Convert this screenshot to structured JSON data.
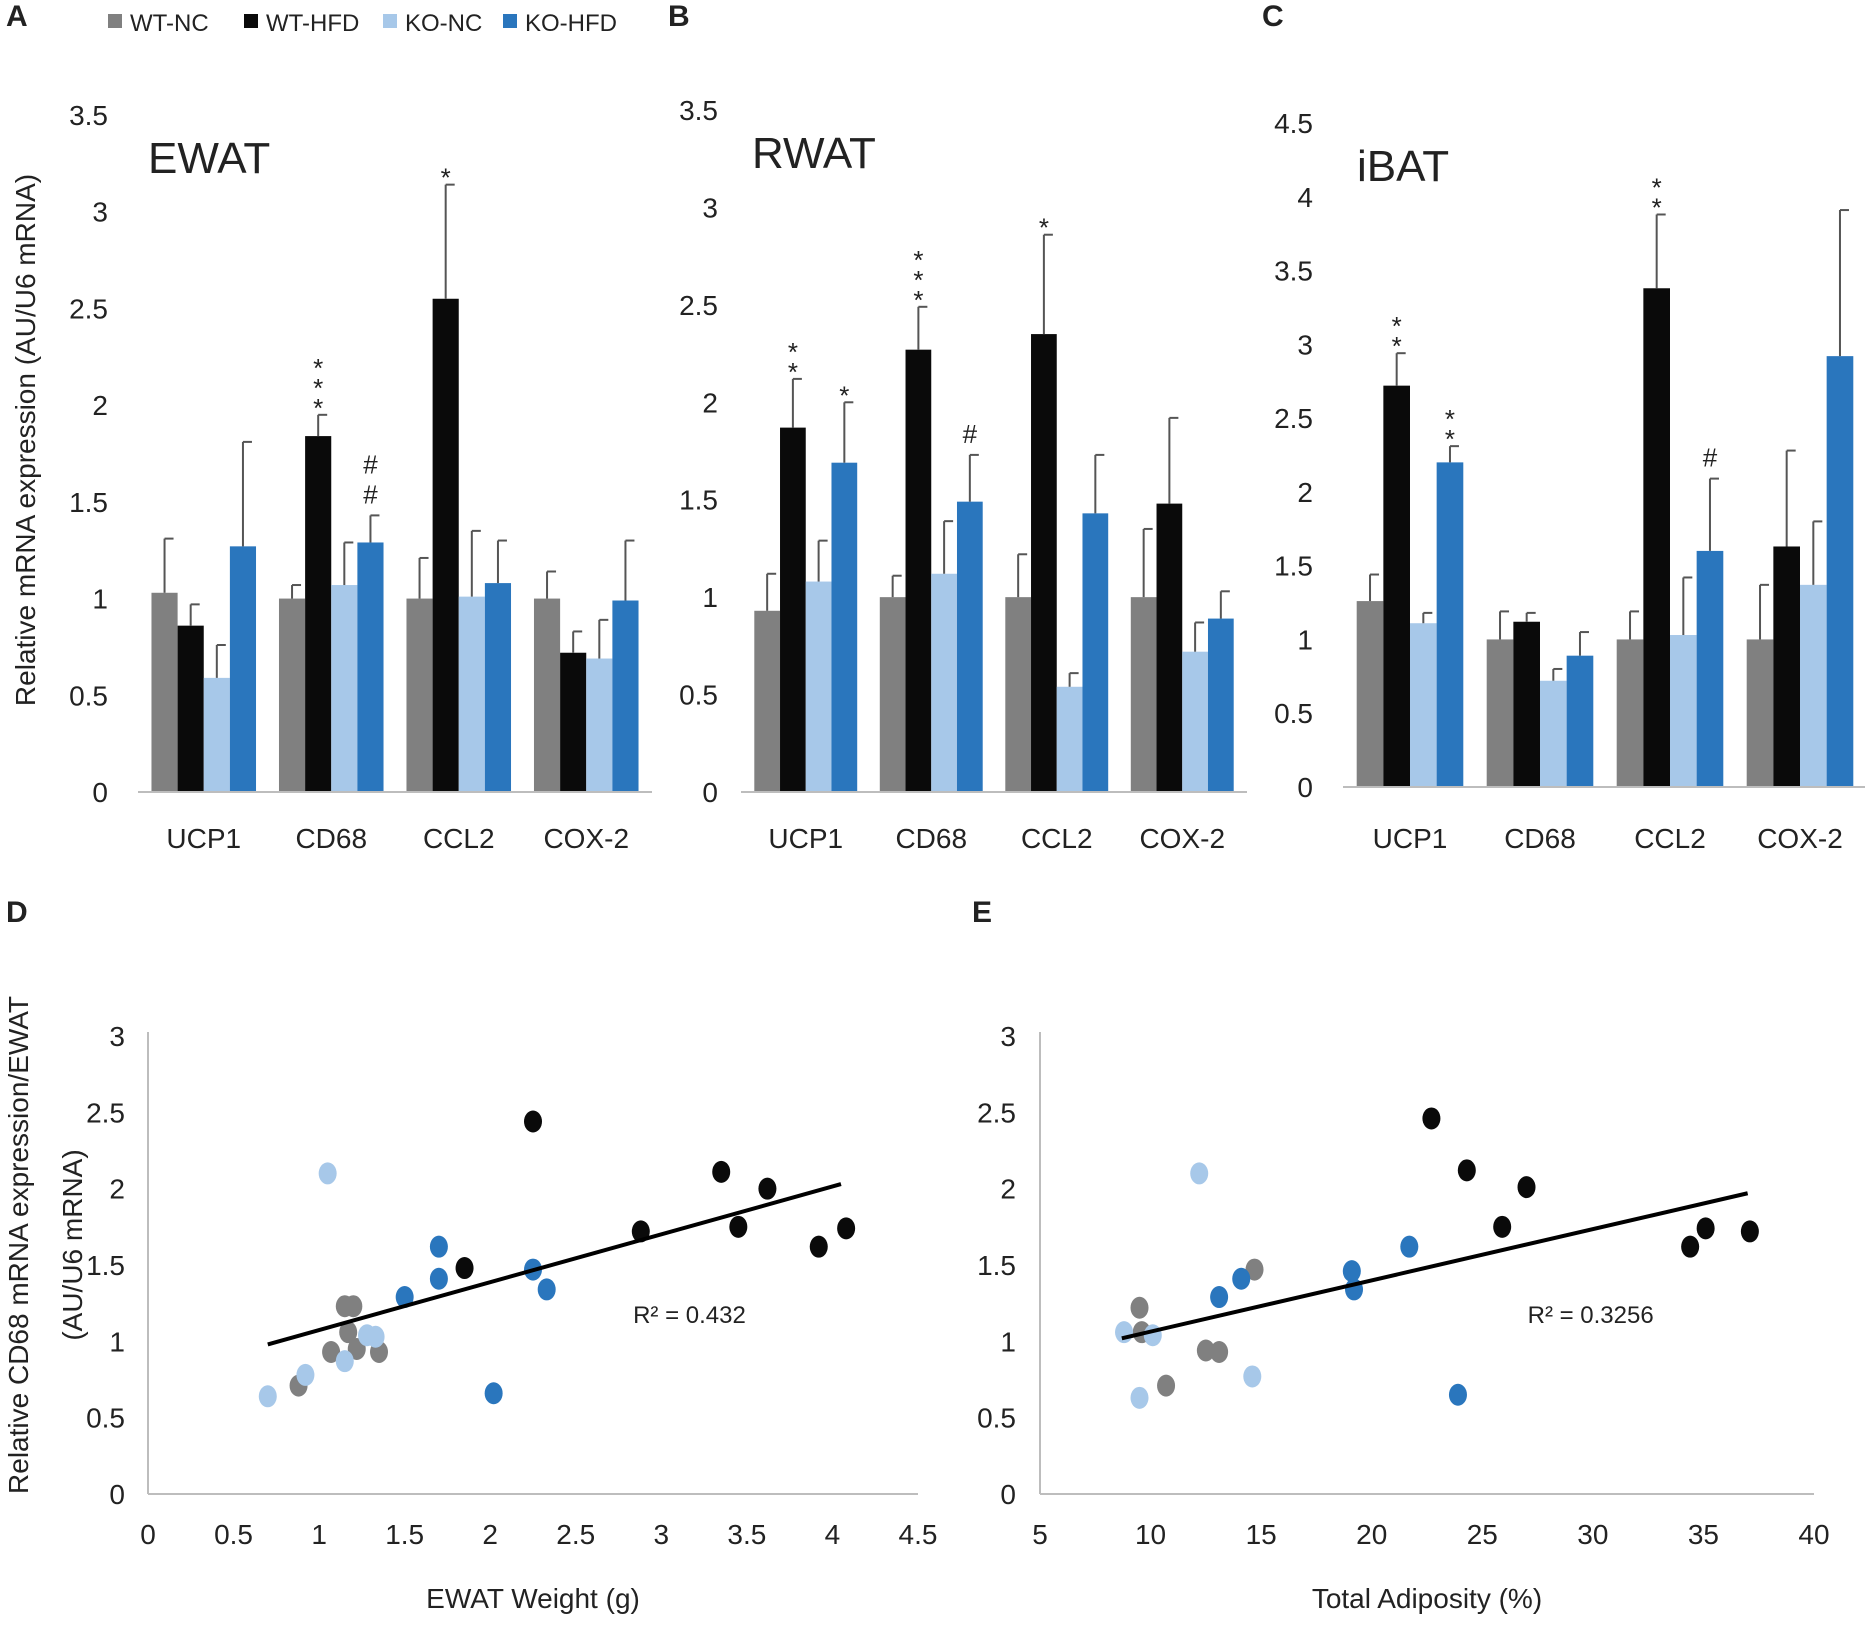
{
  "colors": {
    "WT-NC": "#808080",
    "WT-HFD": "#0a0a0a",
    "KO-NC": "#a7c8e9",
    "KO-HFD": "#2a76bd"
  },
  "legend": [
    "WT-NC",
    "WT-HFD",
    "KO-NC",
    "KO-HFD"
  ],
  "panel_labels": [
    "A",
    "B",
    "C",
    "D",
    "E"
  ],
  "bar_ylabel": "Relative mRNA expression (AU/U6 mRNA)",
  "scatter_ylabel": [
    "Relative CD68 mRNA expression/EWAT",
    "(AU/U6 mRNA)"
  ],
  "chart_data": [
    {
      "type": "bar",
      "title": "EWAT",
      "panel": "A",
      "categories": [
        "UCP1",
        "CD68",
        "CCL2",
        "COX-2"
      ],
      "ylim": [
        0,
        3.5
      ],
      "yticks": [
        "0",
        "0.5",
        "1",
        "1.5",
        "2",
        "2.5",
        "3",
        "3.5"
      ],
      "series": [
        {
          "name": "WT-NC",
          "values": [
            1.03,
            1.0,
            1.0,
            1.0
          ],
          "errors": [
            0.28,
            0.07,
            0.21,
            0.14
          ]
        },
        {
          "name": "WT-HFD",
          "values": [
            0.86,
            1.84,
            2.55,
            0.72
          ],
          "errors": [
            0.11,
            0.11,
            0.59,
            0.11
          ]
        },
        {
          "name": "KO-NC",
          "values": [
            0.59,
            1.07,
            1.01,
            0.69
          ],
          "errors": [
            0.17,
            0.22,
            0.34,
            0.2
          ]
        },
        {
          "name": "KO-HFD",
          "values": [
            1.27,
            1.29,
            1.08,
            0.99
          ],
          "errors": [
            0.54,
            0.14,
            0.22,
            0.31
          ]
        }
      ],
      "annotations": [
        {
          "cat": 1,
          "series": 1,
          "text": "***"
        },
        {
          "cat": 1,
          "series": 3,
          "text": "##"
        },
        {
          "cat": 2,
          "series": 1,
          "text": "*"
        }
      ]
    },
    {
      "type": "bar",
      "title": "RWAT",
      "panel": "B",
      "categories": [
        "UCP1",
        "CD68",
        "CCL2",
        "COX-2"
      ],
      "ylim": [
        0,
        3.5
      ],
      "yticks": [
        "0",
        "0.5",
        "1",
        "1.5",
        "2",
        "2.5",
        "3",
        "3.5"
      ],
      "series": [
        {
          "name": "WT-NC",
          "values": [
            0.93,
            1.0,
            1.0,
            1.0
          ],
          "errors": [
            0.19,
            0.11,
            0.22,
            0.35
          ]
        },
        {
          "name": "WT-HFD",
          "values": [
            1.87,
            2.27,
            2.35,
            1.48
          ],
          "errors": [
            0.25,
            0.22,
            0.51,
            0.44
          ]
        },
        {
          "name": "KO-NC",
          "values": [
            1.08,
            1.12,
            0.54,
            0.72
          ],
          "errors": [
            0.21,
            0.27,
            0.07,
            0.15
          ]
        },
        {
          "name": "KO-HFD",
          "values": [
            1.69,
            1.49,
            1.43,
            0.89
          ],
          "errors": [
            0.31,
            0.24,
            0.3,
            0.14
          ]
        }
      ],
      "annotations": [
        {
          "cat": 0,
          "series": 1,
          "text": "**"
        },
        {
          "cat": 0,
          "series": 3,
          "text": "*"
        },
        {
          "cat": 1,
          "series": 1,
          "text": "***"
        },
        {
          "cat": 1,
          "series": 3,
          "text": "#"
        },
        {
          "cat": 2,
          "series": 1,
          "text": "*"
        }
      ]
    },
    {
      "type": "bar",
      "title": "iBAT",
      "panel": "C",
      "categories": [
        "UCP1",
        "CD68",
        "CCL2",
        "COX-2"
      ],
      "ylim": [
        0,
        4.5
      ],
      "yticks": [
        "0",
        "0.5",
        "1",
        "1.5",
        "2",
        "2.5",
        "3",
        "3.5",
        "4",
        "4.5"
      ],
      "series": [
        {
          "name": "WT-NC",
          "values": [
            1.26,
            1.0,
            1.0,
            1.0
          ],
          "errors": [
            0.18,
            0.19,
            0.19,
            0.37
          ]
        },
        {
          "name": "WT-HFD",
          "values": [
            2.72,
            1.12,
            3.38,
            1.63
          ],
          "errors": [
            0.22,
            0.06,
            0.5,
            0.65
          ]
        },
        {
          "name": "KO-NC",
          "values": [
            1.11,
            0.72,
            1.03,
            1.37
          ],
          "errors": [
            0.07,
            0.08,
            0.39,
            0.43
          ]
        },
        {
          "name": "KO-HFD",
          "values": [
            2.2,
            0.89,
            1.6,
            2.92
          ],
          "errors": [
            0.11,
            0.16,
            0.49,
            0.99
          ]
        }
      ],
      "annotations": [
        {
          "cat": 0,
          "series": 1,
          "text": "**"
        },
        {
          "cat": 0,
          "series": 3,
          "text": "**"
        },
        {
          "cat": 2,
          "series": 1,
          "text": "**"
        },
        {
          "cat": 2,
          "series": 3,
          "text": "#"
        }
      ]
    },
    {
      "type": "scatter",
      "panel": "D",
      "xlabel": "EWAT Weight (g)",
      "xlim": [
        0,
        4.5
      ],
      "ylim": [
        0,
        3
      ],
      "xticks": [
        "0",
        "0.5",
        "1",
        "1.5",
        "2",
        "2.5",
        "3",
        "3.5",
        "4",
        "4.5"
      ],
      "yticks": [
        "0",
        "0.5",
        "1",
        "1.5",
        "2",
        "2.5",
        "3"
      ],
      "r2": "R² = 0.432",
      "trendline": {
        "x": [
          0.7,
          4.05
        ],
        "y": [
          0.98,
          2.03
        ]
      },
      "series": [
        {
          "name": "WT-NC",
          "x": [
            0.88,
            1.07,
            1.15,
            1.17,
            1.2,
            1.22,
            1.35
          ],
          "y": [
            0.71,
            0.93,
            1.23,
            1.06,
            1.23,
            0.95,
            0.93
          ]
        },
        {
          "name": "WT-HFD",
          "x": [
            1.85,
            2.25,
            2.88,
            3.35,
            3.45,
            3.62,
            3.92,
            4.08
          ],
          "y": [
            1.48,
            2.44,
            1.72,
            2.11,
            1.75,
            2.0,
            1.62,
            1.74
          ]
        },
        {
          "name": "KO-NC",
          "x": [
            0.7,
            0.92,
            1.05,
            1.15,
            1.28,
            1.33
          ],
          "y": [
            0.64,
            0.78,
            2.1,
            0.87,
            1.04,
            1.03
          ]
        },
        {
          "name": "KO-HFD",
          "x": [
            1.5,
            1.7,
            1.7,
            2.02,
            2.25,
            2.33
          ],
          "y": [
            1.29,
            1.62,
            1.41,
            0.66,
            1.47,
            1.34
          ]
        }
      ]
    },
    {
      "type": "scatter",
      "panel": "E",
      "xlabel": "Total Adiposity (%)",
      "xlim": [
        5,
        40
      ],
      "ylim": [
        0,
        3
      ],
      "xticks": [
        "5",
        "10",
        "15",
        "20",
        "25",
        "30",
        "35",
        "40"
      ],
      "yticks": [
        "0",
        "0.5",
        "1",
        "1.5",
        "2",
        "2.5",
        "3"
      ],
      "r2": "R² = 0.3256",
      "trendline": {
        "x": [
          8.7,
          37.0
        ],
        "y": [
          1.02,
          1.97
        ]
      },
      "series": [
        {
          "name": "WT-NC",
          "x": [
            9.5,
            9.6,
            10.7,
            12.5,
            13.1,
            14.7
          ],
          "y": [
            1.22,
            1.06,
            0.71,
            0.94,
            0.93,
            1.47
          ]
        },
        {
          "name": "WT-HFD",
          "x": [
            22.7,
            24.3,
            25.9,
            27.0,
            34.4,
            35.1,
            37.1
          ],
          "y": [
            2.46,
            2.12,
            1.75,
            2.01,
            1.62,
            1.74,
            1.72
          ]
        },
        {
          "name": "KO-NC",
          "x": [
            8.8,
            9.5,
            10.1,
            12.2,
            14.6
          ],
          "y": [
            1.06,
            0.63,
            1.04,
            2.1,
            0.77
          ]
        },
        {
          "name": "KO-HFD",
          "x": [
            13.1,
            14.1,
            19.1,
            19.2,
            21.7,
            23.9
          ],
          "y": [
            1.29,
            1.41,
            1.46,
            1.34,
            1.62,
            0.65
          ]
        }
      ]
    }
  ]
}
